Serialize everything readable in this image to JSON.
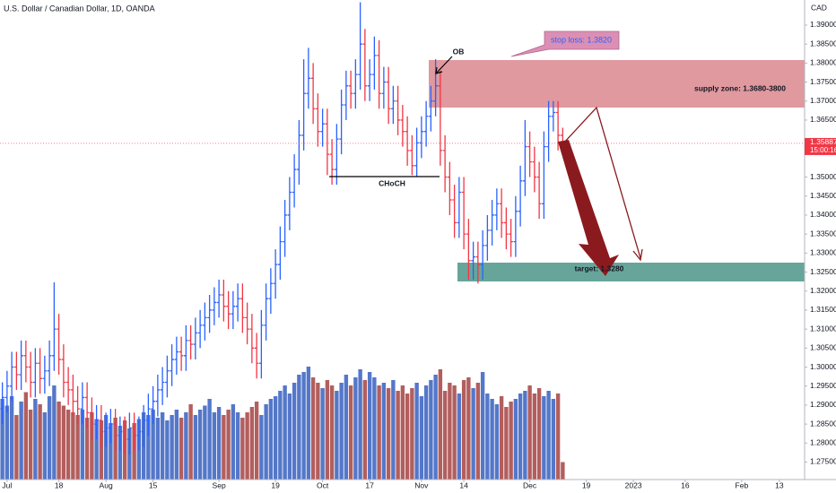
{
  "chart_data": {
    "type": "ohlc",
    "title": "U.S. Dollar / Canadian Dollar, 1D, OANDA",
    "currency": "CAD",
    "up_color": "#2962ff",
    "down_color": "#f23645",
    "volume_up_color": "#5477c9",
    "volume_down_color": "#b35e5e",
    "xlim": [
      -0.5,
      170.36
    ],
    "ylim": [
      1.2704,
      1.3966
    ],
    "vlim": [
      0,
      100
    ],
    "xticks": [
      {
        "value": 1,
        "label": "Jul"
      },
      {
        "value": 12,
        "label": "18"
      },
      {
        "value": 22,
        "label": "Aug"
      },
      {
        "value": 32,
        "label": "15"
      },
      {
        "value": 46,
        "label": "Sep"
      },
      {
        "value": 58,
        "label": "19"
      },
      {
        "value": 68,
        "label": "Oct"
      },
      {
        "value": 78,
        "label": "17"
      },
      {
        "value": 89,
        "label": "Nov"
      },
      {
        "value": 98,
        "label": "14"
      },
      {
        "value": 112,
        "label": "Dec"
      },
      {
        "value": 124,
        "label": "19"
      },
      {
        "value": 134,
        "label": "2023"
      },
      {
        "value": 145,
        "label": "16"
      },
      {
        "value": 157,
        "label": "Feb"
      },
      {
        "value": 165,
        "label": "13"
      }
    ],
    "yticks": [
      {
        "value": 1.39,
        "label": "1.39000"
      },
      {
        "value": 1.385,
        "label": "1.38500"
      },
      {
        "value": 1.38,
        "label": "1.38000"
      },
      {
        "value": 1.375,
        "label": "1.37500"
      },
      {
        "value": 1.37,
        "label": "1.37000"
      },
      {
        "value": 1.365,
        "label": "1.36500"
      },
      {
        "value": 1.35,
        "label": "1.35000"
      },
      {
        "value": 1.345,
        "label": "1.34500"
      },
      {
        "value": 1.34,
        "label": "1.34000"
      },
      {
        "value": 1.335,
        "label": "1.33500"
      },
      {
        "value": 1.33,
        "label": "1.33000"
      },
      {
        "value": 1.325,
        "label": "1.32500"
      },
      {
        "value": 1.32,
        "label": "1.32000"
      },
      {
        "value": 1.315,
        "label": "1.31500"
      },
      {
        "value": 1.31,
        "label": "1.31000"
      },
      {
        "value": 1.305,
        "label": "1.30500"
      },
      {
        "value": 1.3,
        "label": "1.30000"
      },
      {
        "value": 1.295,
        "label": "1.29500"
      },
      {
        "value": 1.29,
        "label": "1.29000"
      },
      {
        "value": 1.285,
        "label": "1.28500"
      },
      {
        "value": 1.28,
        "label": "1.28000"
      },
      {
        "value": 1.275,
        "label": "1.27500"
      }
    ],
    "last_price": {
      "value": 1.35887,
      "label": "1.35887"
    },
    "countdown": "15:00:16",
    "annotations": {
      "supply_zone": "supply zone: 1.3680-3800",
      "stop_loss": "stop loss: 1.3820",
      "target": "target: 1.3280",
      "ob": "OB",
      "choch": "CHoCH"
    },
    "open": [
      1.289,
      1.292,
      1.295,
      1.3,
      1.298,
      1.303,
      1.3,
      1.296,
      1.301,
      1.297,
      1.299,
      1.303,
      1.31,
      1.302,
      1.296,
      1.294,
      1.291,
      1.289,
      1.292,
      1.288,
      1.285,
      1.286,
      1.283,
      1.284,
      1.285,
      1.282,
      1.283,
      1.281,
      1.284,
      1.282,
      1.283,
      1.286,
      1.289,
      1.291,
      1.294,
      1.296,
      1.299,
      1.302,
      1.304,
      1.303,
      1.307,
      1.306,
      1.309,
      1.311,
      1.313,
      1.315,
      1.317,
      1.319,
      1.316,
      1.314,
      1.316,
      1.318,
      1.313,
      1.31,
      1.305,
      1.301,
      1.311,
      1.318,
      1.322,
      1.327,
      1.333,
      1.34,
      1.346,
      1.352,
      1.361,
      1.372,
      1.376,
      1.368,
      1.362,
      1.364,
      1.356,
      1.352,
      1.36,
      1.369,
      1.374,
      1.372,
      1.377,
      1.385,
      1.374,
      1.377,
      1.382,
      1.372,
      1.375,
      1.368,
      1.37,
      1.365,
      1.362,
      1.357,
      1.353,
      1.359,
      1.362,
      1.366,
      1.37,
      1.374,
      1.357,
      1.35,
      1.344,
      1.338,
      1.346,
      1.335,
      1.328,
      1.329,
      1.327,
      1.332,
      1.336,
      1.34,
      1.343,
      1.338,
      1.335,
      1.333,
      1.341,
      1.349,
      1.358,
      1.354,
      1.35,
      1.343,
      1.358,
      1.366,
      1.367,
      1.361
    ],
    "high": [
      1.296,
      1.299,
      1.304,
      1.304,
      1.307,
      1.307,
      1.304,
      1.305,
      1.305,
      1.303,
      1.307,
      1.3223,
      1.314,
      1.306,
      1.3,
      1.298,
      1.295,
      1.296,
      1.296,
      1.292,
      1.29,
      1.29,
      1.288,
      1.289,
      1.289,
      1.287,
      1.287,
      1.288,
      1.288,
      1.287,
      1.29,
      1.293,
      1.295,
      1.298,
      1.3,
      1.303,
      1.306,
      1.308,
      1.308,
      1.311,
      1.311,
      1.313,
      1.315,
      1.317,
      1.319,
      1.321,
      1.323,
      1.323,
      1.32,
      1.32,
      1.322,
      1.322,
      1.317,
      1.314,
      1.309,
      1.315,
      1.322,
      1.326,
      1.331,
      1.337,
      1.344,
      1.35,
      1.356,
      1.365,
      1.381,
      1.384,
      1.38,
      1.372,
      1.368,
      1.368,
      1.36,
      1.364,
      1.373,
      1.378,
      1.378,
      1.381,
      1.396,
      1.389,
      1.381,
      1.387,
      1.386,
      1.379,
      1.379,
      1.374,
      1.374,
      1.369,
      1.366,
      1.361,
      1.363,
      1.366,
      1.37,
      1.374,
      1.381,
      1.378,
      1.361,
      1.354,
      1.348,
      1.35,
      1.35,
      1.339,
      1.333,
      1.333,
      1.336,
      1.34,
      1.344,
      1.347,
      1.347,
      1.342,
      1.339,
      1.345,
      1.353,
      1.365,
      1.362,
      1.358,
      1.354,
      1.362,
      1.37,
      1.37,
      1.37,
      1.363
    ],
    "low": [
      1.285,
      1.288,
      1.291,
      1.294,
      1.294,
      1.296,
      1.292,
      1.292,
      1.293,
      1.293,
      1.295,
      1.299,
      1.298,
      1.292,
      1.29,
      1.287,
      1.285,
      1.285,
      1.284,
      1.281,
      1.281,
      1.279,
      1.279,
      1.28,
      1.278,
      1.278,
      1.277,
      1.277,
      1.278,
      1.278,
      1.279,
      1.282,
      1.285,
      1.287,
      1.29,
      1.292,
      1.295,
      1.298,
      1.299,
      1.299,
      1.302,
      1.302,
      1.305,
      1.307,
      1.309,
      1.311,
      1.313,
      1.312,
      1.31,
      1.31,
      1.312,
      1.309,
      1.306,
      1.301,
      1.297,
      1.297,
      1.307,
      1.314,
      1.318,
      1.323,
      1.329,
      1.336,
      1.342,
      1.348,
      1.357,
      1.368,
      1.364,
      1.358,
      1.358,
      1.3505,
      1.348,
      1.348,
      1.356,
      1.365,
      1.368,
      1.368,
      1.373,
      1.37,
      1.37,
      1.373,
      1.368,
      1.368,
      1.364,
      1.364,
      1.361,
      1.358,
      1.353,
      1.3505,
      1.35,
      1.355,
      1.358,
      1.362,
      1.366,
      1.353,
      1.346,
      1.34,
      1.334,
      1.334,
      1.331,
      1.323,
      1.323,
      1.322,
      1.323,
      1.328,
      1.332,
      1.336,
      1.334,
      1.331,
      1.329,
      1.329,
      1.337,
      1.345,
      1.35,
      1.346,
      1.339,
      1.339,
      1.354,
      1.362,
      1.357,
      1.356
    ],
    "close": [
      1.292,
      1.295,
      1.3,
      1.298,
      1.303,
      1.3,
      1.296,
      1.301,
      1.297,
      1.299,
      1.303,
      1.31,
      1.302,
      1.296,
      1.294,
      1.291,
      1.289,
      1.292,
      1.288,
      1.285,
      1.286,
      1.283,
      1.284,
      1.285,
      1.282,
      1.283,
      1.281,
      1.284,
      1.282,
      1.283,
      1.286,
      1.289,
      1.291,
      1.294,
      1.296,
      1.299,
      1.302,
      1.304,
      1.303,
      1.307,
      1.306,
      1.309,
      1.311,
      1.313,
      1.315,
      1.317,
      1.319,
      1.316,
      1.314,
      1.316,
      1.318,
      1.313,
      1.31,
      1.305,
      1.301,
      1.311,
      1.318,
      1.322,
      1.327,
      1.333,
      1.34,
      1.346,
      1.352,
      1.361,
      1.372,
      1.376,
      1.368,
      1.362,
      1.364,
      1.356,
      1.352,
      1.36,
      1.369,
      1.374,
      1.372,
      1.377,
      1.385,
      1.374,
      1.377,
      1.382,
      1.372,
      1.375,
      1.368,
      1.37,
      1.365,
      1.362,
      1.357,
      1.353,
      1.359,
      1.362,
      1.366,
      1.37,
      1.374,
      1.357,
      1.35,
      1.344,
      1.338,
      1.346,
      1.335,
      1.328,
      1.329,
      1.327,
      1.332,
      1.336,
      1.34,
      1.343,
      1.338,
      1.335,
      1.333,
      1.341,
      1.349,
      1.358,
      1.354,
      1.35,
      1.343,
      1.358,
      1.366,
      1.367,
      1.361,
      1.3588
    ],
    "volume": [
      60,
      55,
      62,
      48,
      58,
      65,
      52,
      60,
      56,
      50,
      62,
      70,
      58,
      55,
      52,
      50,
      48,
      52,
      46,
      50,
      45,
      44,
      48,
      42,
      46,
      40,
      44,
      38,
      42,
      45,
      50,
      48,
      52,
      46,
      50,
      44,
      48,
      52,
      46,
      50,
      56,
      48,
      52,
      55,
      60,
      50,
      54,
      48,
      52,
      56,
      50,
      46,
      50,
      54,
      58,
      48,
      56,
      60,
      62,
      66,
      70,
      64,
      72,
      78,
      80,
      84,
      76,
      72,
      68,
      74,
      70,
      66,
      72,
      78,
      70,
      76,
      82,
      74,
      80,
      76,
      70,
      72,
      68,
      74,
      66,
      70,
      64,
      68,
      72,
      62,
      70,
      74,
      78,
      82,
      66,
      72,
      70,
      64,
      74,
      76,
      68,
      72,
      80,
      64,
      60,
      56,
      62,
      54,
      58,
      60,
      64,
      66,
      70,
      64,
      68,
      62,
      66,
      60,
      64,
      13
    ]
  }
}
